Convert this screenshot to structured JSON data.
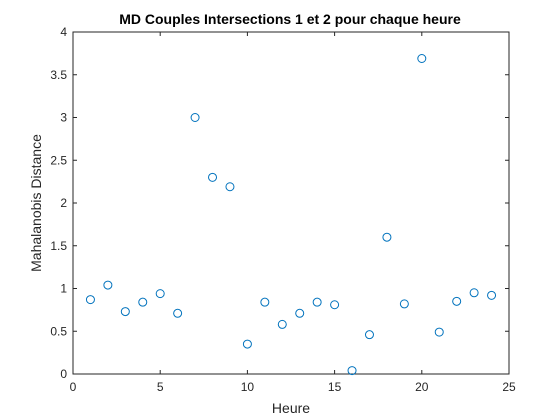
{
  "chart_data": {
    "type": "scatter",
    "title": "MD Couples Intersections 1 et 2 pour chaque heure",
    "xlabel": "Heure",
    "ylabel": "Mahalanobis Distance",
    "xlim": [
      0,
      25
    ],
    "ylim": [
      0,
      4
    ],
    "xticks": [
      "0",
      "5",
      "10",
      "15",
      "20",
      "25"
    ],
    "yticks": [
      "0",
      "0.5",
      "1",
      "1.5",
      "2",
      "2.5",
      "3",
      "3.5",
      "4"
    ],
    "grid": false,
    "marker_color": "#0072BD",
    "series": [
      {
        "x": [
          1,
          2,
          3,
          4,
          5,
          6,
          7,
          8,
          9,
          10,
          11,
          12,
          13,
          14,
          15,
          16,
          17,
          18,
          19,
          20,
          21,
          22,
          23,
          24
        ],
        "y": [
          0.87,
          1.04,
          0.73,
          0.84,
          0.94,
          0.71,
          3.0,
          2.3,
          2.19,
          0.35,
          0.84,
          0.58,
          0.71,
          0.84,
          0.81,
          0.04,
          0.46,
          1.6,
          0.82,
          3.69,
          0.49,
          0.85,
          0.95,
          0.92
        ]
      }
    ]
  }
}
